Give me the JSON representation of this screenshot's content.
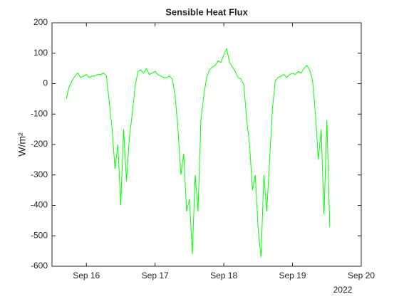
{
  "chart_data": {
    "type": "line",
    "title": "Sensible Heat Flux",
    "y_label": "W/m²",
    "x_year_label": "2022",
    "color": "#00ff00",
    "xlim": [
      "2022-09-15 12:00",
      "2022-09-20 00:00"
    ],
    "xticks": [
      {
        "value": "2022-09-16 00:00",
        "label": "Sep 16"
      },
      {
        "value": "2022-09-17 00:00",
        "label": "Sep 17"
      },
      {
        "value": "2022-09-18 00:00",
        "label": "Sep 18"
      },
      {
        "value": "2022-09-19 00:00",
        "label": "Sep 19"
      },
      {
        "value": "2022-09-20 00:00",
        "label": "Sep 20"
      }
    ],
    "ylim": [
      -600,
      200
    ],
    "yticks": [
      -600,
      -500,
      -400,
      -300,
      -200,
      -100,
      0,
      100,
      200
    ],
    "x": [
      "2022-09-15 17:00",
      "2022-09-15 18:00",
      "2022-09-15 19:00",
      "2022-09-15 20:00",
      "2022-09-15 21:00",
      "2022-09-15 22:00",
      "2022-09-15 23:00",
      "2022-09-16 00:00",
      "2022-09-16 01:00",
      "2022-09-16 02:00",
      "2022-09-16 03:00",
      "2022-09-16 04:00",
      "2022-09-16 05:00",
      "2022-09-16 06:00",
      "2022-09-16 07:00",
      "2022-09-16 08:00",
      "2022-09-16 09:00",
      "2022-09-16 10:00",
      "2022-09-16 11:00",
      "2022-09-16 12:00",
      "2022-09-16 13:00",
      "2022-09-16 14:00",
      "2022-09-16 15:00",
      "2022-09-16 16:00",
      "2022-09-16 17:00",
      "2022-09-16 18:00",
      "2022-09-16 19:00",
      "2022-09-16 20:00",
      "2022-09-16 21:00",
      "2022-09-16 22:00",
      "2022-09-16 23:00",
      "2022-09-17 00:00",
      "2022-09-17 01:00",
      "2022-09-17 02:00",
      "2022-09-17 03:00",
      "2022-09-17 04:00",
      "2022-09-17 05:00",
      "2022-09-17 06:00",
      "2022-09-17 07:00",
      "2022-09-17 08:00",
      "2022-09-17 09:00",
      "2022-09-17 10:00",
      "2022-09-17 11:00",
      "2022-09-17 12:00",
      "2022-09-17 13:00",
      "2022-09-17 14:00",
      "2022-09-17 15:00",
      "2022-09-17 16:00",
      "2022-09-17 17:00",
      "2022-09-17 18:00",
      "2022-09-17 19:00",
      "2022-09-17 20:00",
      "2022-09-17 21:00",
      "2022-09-17 22:00",
      "2022-09-17 23:00",
      "2022-09-18 00:00",
      "2022-09-18 01:00",
      "2022-09-18 02:00",
      "2022-09-18 03:00",
      "2022-09-18 04:00",
      "2022-09-18 05:00",
      "2022-09-18 06:00",
      "2022-09-18 07:00",
      "2022-09-18 08:00",
      "2022-09-18 09:00",
      "2022-09-18 10:00",
      "2022-09-18 11:00",
      "2022-09-18 12:00",
      "2022-09-18 13:00",
      "2022-09-18 14:00",
      "2022-09-18 15:00",
      "2022-09-18 16:00",
      "2022-09-18 17:00",
      "2022-09-18 18:00",
      "2022-09-18 19:00",
      "2022-09-18 20:00",
      "2022-09-18 21:00",
      "2022-09-18 22:00",
      "2022-09-18 23:00",
      "2022-09-19 00:00",
      "2022-09-19 01:00",
      "2022-09-19 02:00",
      "2022-09-19 03:00",
      "2022-09-19 04:00",
      "2022-09-19 05:00",
      "2022-09-19 06:00",
      "2022-09-19 07:00",
      "2022-09-19 08:00",
      "2022-09-19 09:00",
      "2022-09-19 10:00",
      "2022-09-19 11:00",
      "2022-09-19 12:00",
      "2022-09-19 13:00"
    ],
    "values": [
      -50,
      -10,
      10,
      25,
      35,
      20,
      25,
      30,
      20,
      25,
      25,
      30,
      30,
      35,
      25,
      -60,
      -150,
      -280,
      -200,
      -400,
      -150,
      -320,
      -180,
      -100,
      -10,
      40,
      45,
      35,
      50,
      30,
      35,
      40,
      30,
      25,
      20,
      20,
      25,
      15,
      -40,
      -150,
      -300,
      -230,
      -420,
      -380,
      -560,
      -300,
      -420,
      -120,
      -40,
      20,
      45,
      55,
      60,
      75,
      70,
      95,
      115,
      70,
      55,
      40,
      20,
      15,
      -5,
      -120,
      -200,
      -350,
      -300,
      -480,
      -570,
      -300,
      -420,
      -250,
      -80,
      10,
      20,
      25,
      30,
      20,
      30,
      35,
      30,
      40,
      35,
      50,
      60,
      45,
      10,
      -100,
      -250,
      -150,
      -430,
      -120,
      -470
    ]
  }
}
